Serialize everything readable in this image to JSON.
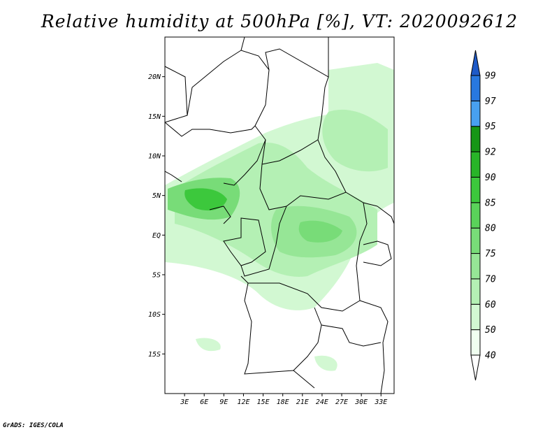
{
  "title": "Relative humidity at 500hPa [%], VT: 2020092612",
  "credit": "GrADS: IGES/COLA",
  "map": {
    "lon_range": [
      0,
      35
    ],
    "lat_range": [
      -20,
      25
    ],
    "lat_ticks": [
      {
        "lat": 20,
        "label": "20N"
      },
      {
        "lat": 15,
        "label": "15N"
      },
      {
        "lat": 10,
        "label": "10N"
      },
      {
        "lat": 5,
        "label": "5N"
      },
      {
        "lat": 0,
        "label": "EQ"
      },
      {
        "lat": -5,
        "label": "5S"
      },
      {
        "lat": -10,
        "label": "10S"
      },
      {
        "lat": -15,
        "label": "15S"
      }
    ],
    "lon_ticks": [
      {
        "lon": 3,
        "label": "3E"
      },
      {
        "lon": 6,
        "label": "6E"
      },
      {
        "lon": 9,
        "label": "9E"
      },
      {
        "lon": 12,
        "label": "12E"
      },
      {
        "lon": 15,
        "label": "15E"
      },
      {
        "lon": 18,
        "label": "18E"
      },
      {
        "lon": 21,
        "label": "21E"
      },
      {
        "lon": 24,
        "label": "24E"
      },
      {
        "lon": 27,
        "label": "27E"
      },
      {
        "lon": 30,
        "label": "30E"
      },
      {
        "lon": 33,
        "label": "33E"
      }
    ]
  },
  "colorbar": {
    "levels": [
      "40",
      "50",
      "60",
      "70",
      "75",
      "80",
      "85",
      "90",
      "92",
      "95",
      "97",
      "99"
    ],
    "colors": [
      "#f0fff0",
      "#d2f8d2",
      "#b4f0b4",
      "#96e696",
      "#78dc78",
      "#5ad25a",
      "#3cc83c",
      "#28b428",
      "#169616",
      "#48a0f0",
      "#2878e0",
      "#1e5ac8"
    ],
    "below_color": "#ffffff",
    "above_color": "#1e5ac8"
  }
}
